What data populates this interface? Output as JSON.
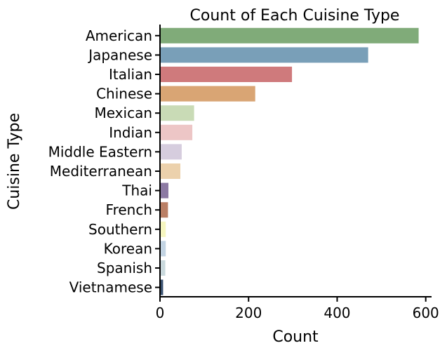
{
  "chart_data": {
    "type": "bar",
    "orientation": "horizontal",
    "title": "Count of Each Cuisine Type",
    "xlabel": "Count",
    "ylabel": "Cuisine Type",
    "xlim": [
      0,
      610
    ],
    "xticks": [
      0,
      200,
      400,
      600
    ],
    "grid": false,
    "legend": "none",
    "categories": [
      "American",
      "Japanese",
      "Italian",
      "Chinese",
      "Mexican",
      "Indian",
      "Middle Eastern",
      "Mediterranean",
      "Thai",
      "French",
      "Southern",
      "Korean",
      "Spanish",
      "Vietnamese"
    ],
    "values": [
      584,
      470,
      298,
      215,
      77,
      73,
      49,
      46,
      19,
      18,
      13,
      13,
      12,
      7
    ],
    "colors": [
      "#80ab79",
      "#799fb8",
      "#cf7a7c",
      "#d9a574",
      "#c9dbb6",
      "#edc6c6",
      "#d6cdde",
      "#ecd1ac",
      "#8c7aa3",
      "#ba7f65",
      "#f6f6c0",
      "#c3d4e3",
      "#cad9dd",
      "#3a5170"
    ]
  }
}
